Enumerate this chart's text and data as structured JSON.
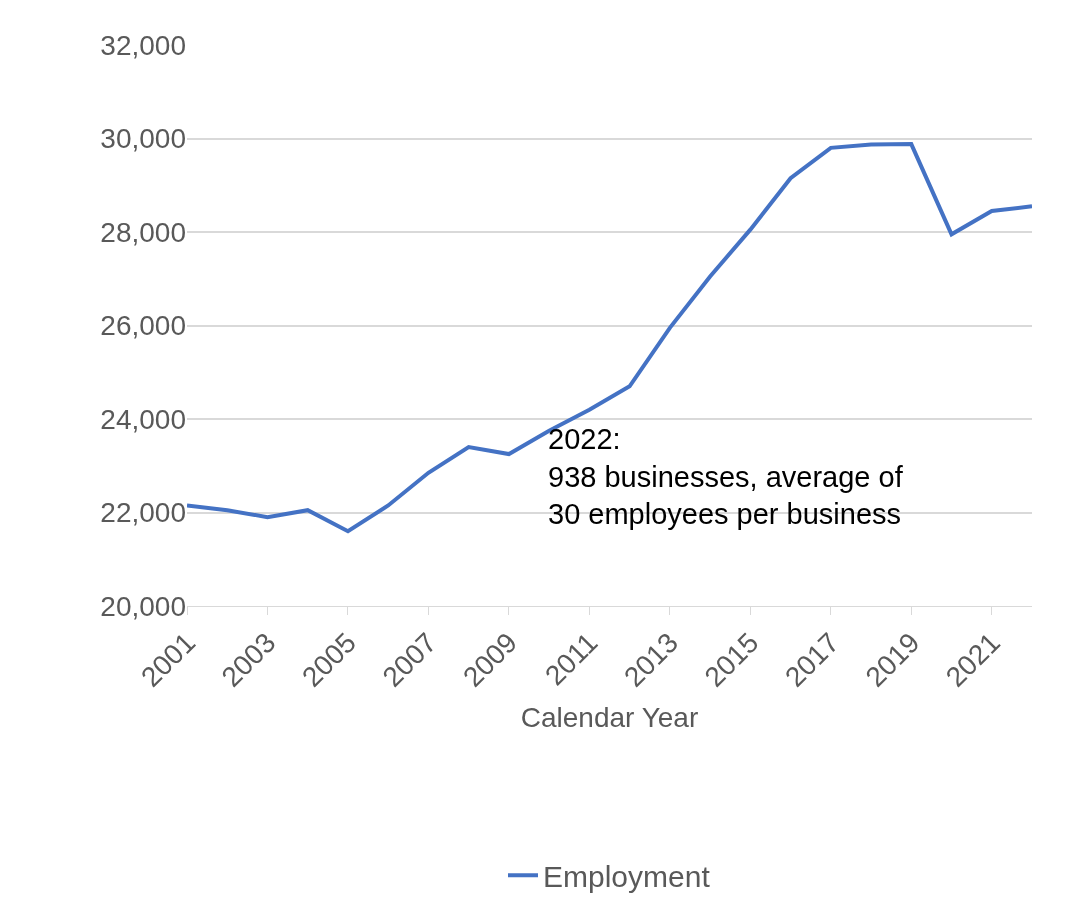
{
  "chart_data": {
    "type": "line",
    "xlabel": "Calendar Year",
    "x": [
      2001,
      2002,
      2003,
      2004,
      2005,
      2006,
      2007,
      2008,
      2009,
      2010,
      2011,
      2012,
      2013,
      2014,
      2015,
      2016,
      2017,
      2018,
      2019,
      2020,
      2021,
      2022
    ],
    "series": [
      {
        "name": "Employment",
        "color": "#4472c4",
        "values": [
          22150,
          22050,
          21900,
          22050,
          21600,
          22150,
          22850,
          23400,
          23250,
          23750,
          24200,
          24700,
          25950,
          27050,
          28050,
          29150,
          29800,
          29870,
          29880,
          27950,
          28450,
          28550
        ]
      }
    ],
    "xlim": [
      2001,
      2022
    ],
    "xticks": [
      2001,
      2003,
      2005,
      2007,
      2009,
      2011,
      2013,
      2015,
      2017,
      2019,
      2021
    ],
    "ylim": [
      20000,
      32000
    ],
    "yticks": [
      {
        "value": 20000,
        "label": "20,000"
      },
      {
        "value": 22000,
        "label": "22,000"
      },
      {
        "value": 24000,
        "label": "24,000"
      },
      {
        "value": 26000,
        "label": "26,000"
      },
      {
        "value": 28000,
        "label": "28,000"
      },
      {
        "value": 30000,
        "label": "30,000"
      },
      {
        "value": 32000,
        "label": "32,000"
      }
    ],
    "grid": "y",
    "legend": "bottom",
    "marker": "none",
    "line_style": "solid",
    "annotations": [
      "2022:\n938 businesses, average of\n30 employees per business"
    ]
  }
}
